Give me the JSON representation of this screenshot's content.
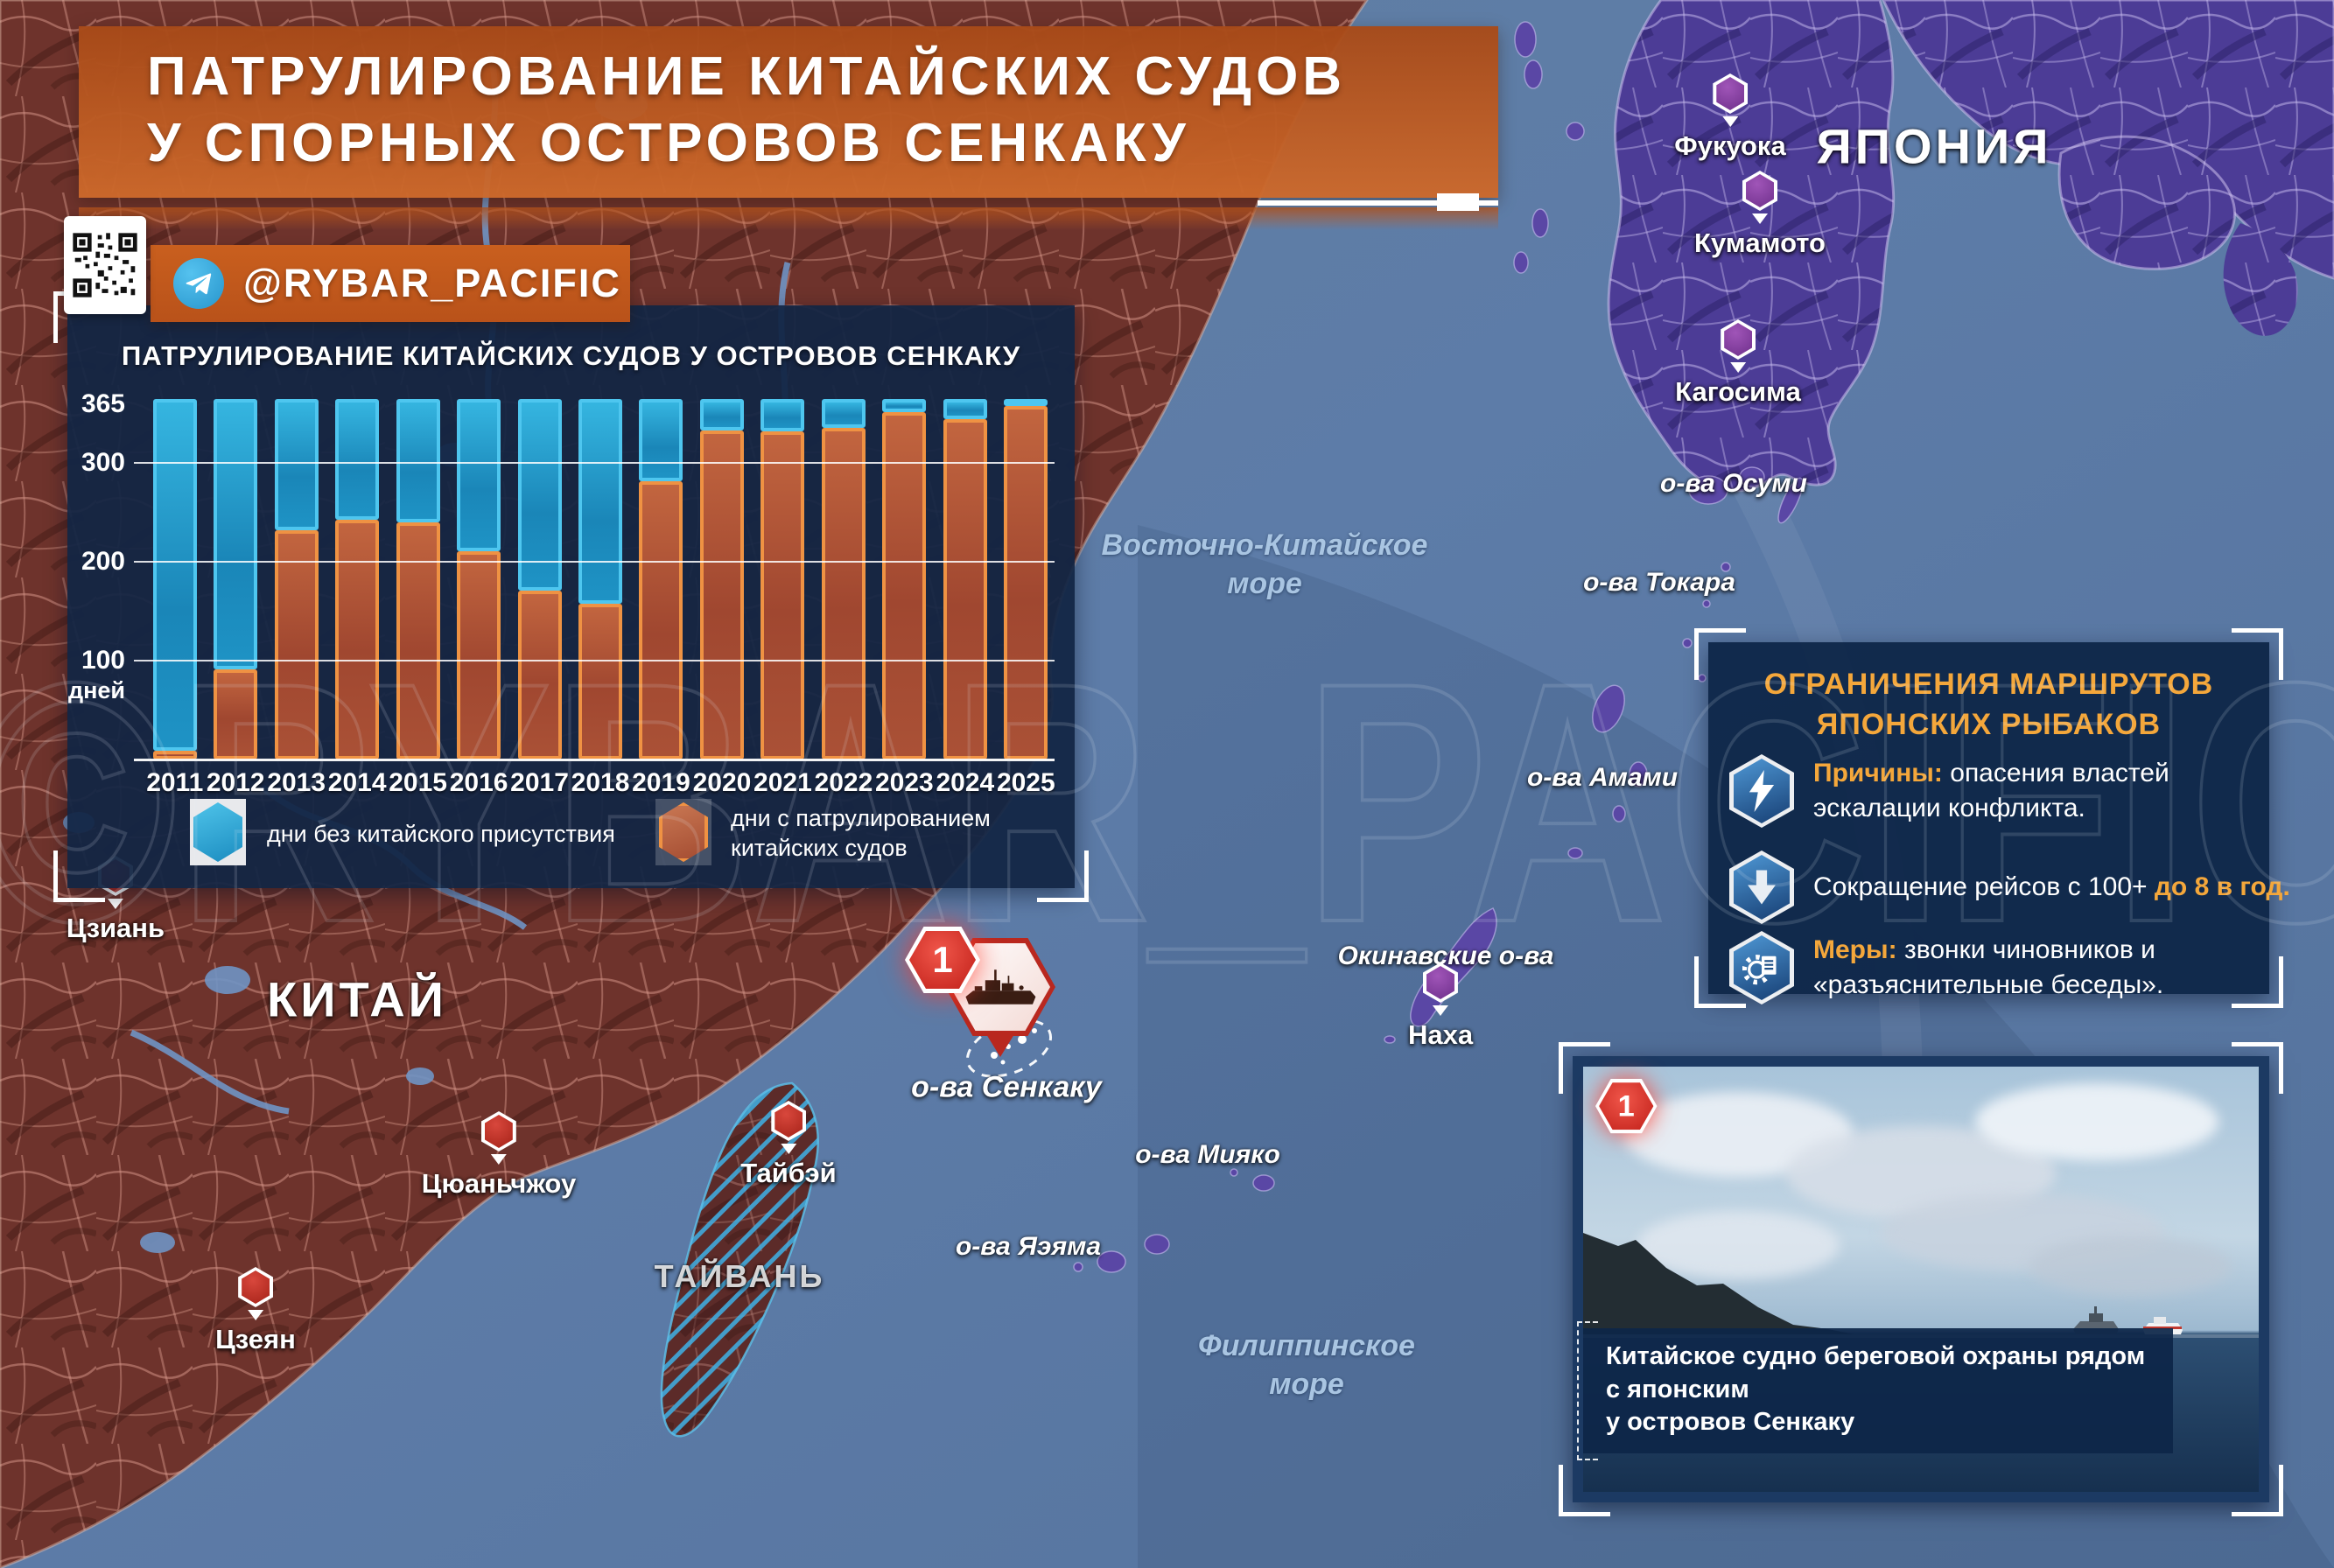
{
  "header": {
    "title_line1": "ПАТРУЛИРОВАНИЕ КИТАЙСКИХ СУДОВ",
    "title_line2": "У СПОРНЫХ ОСТРОВОВ СЕНКАКУ",
    "telegram_handle": "@RYBAR_PACIFIC"
  },
  "watermark_text": "©RYBAR_PACIFIC",
  "chart": {
    "title": "ПАТРУЛИРОВАНИЕ КИТАЙСКИХ СУДОВ У ОСТРОВОВ СЕНКАКУ",
    "y_axis_label": "дней",
    "legend_blue": "дни без китайского присутствия",
    "legend_orange_line1": "дни с патрулированием",
    "legend_orange_line2": "китайских судов"
  },
  "chart_data": {
    "type": "bar",
    "stacked": true,
    "title": "ПАТРУЛИРОВАНИЕ КИТАЙСКИХ СУДОВ У ОСТРОВОВ СЕНКАКУ",
    "ylabel": "дней",
    "ylim": [
      0,
      365
    ],
    "y_ticks": [
      {
        "v": 365,
        "line": false
      },
      {
        "v": 300,
        "line": true
      },
      {
        "v": 200,
        "line": true
      },
      {
        "v": 100,
        "line": true
      }
    ],
    "grid": true,
    "legend_position": "bottom",
    "categories": [
      2011,
      2012,
      2013,
      2014,
      2015,
      2016,
      2017,
      2018,
      2019,
      2020,
      2021,
      2022,
      2023,
      2024,
      2025
    ],
    "series": [
      {
        "name": "дни с патрулированием китайских судов",
        "color": "#b65a36",
        "values": [
          9,
          91,
          232,
          243,
          240,
          211,
          171,
          158,
          282,
          333,
          332,
          336,
          352,
          345,
          358
        ]
      },
      {
        "name": "дни без китайского присутствия",
        "color": "#29a7d7",
        "values": [
          356,
          274,
          133,
          122,
          125,
          154,
          194,
          207,
          83,
          32,
          33,
          29,
          13,
          20,
          7
        ]
      }
    ]
  },
  "map": {
    "labels": {
      "japan": "ЯПОНИЯ",
      "china": "КИТАЙ",
      "taiwan": "ТАЙВАНЬ",
      "east_china_sea_line1": "Восточно-Китайское",
      "east_china_sea_line2": "море",
      "philippine_sea_line1": "Филиппинское",
      "philippine_sea_line2": "море",
      "osumi": "о-ва Осуми",
      "tokara": "о-ва Токара",
      "amami": "о-ва Амами",
      "okinawa_islands": "Окинавские о-ва",
      "miyako": "о-ва Мияко",
      "yaeyama": "о-ва Яэяма",
      "senkaku": "о-ва Сенкаку"
    },
    "cities": {
      "fukuoka": "Фукуока",
      "kumamoto": "Кумамото",
      "kagoshima": "Кагосима",
      "naha": "Наха",
      "jian": "Цзиань",
      "quanzhou": "Цюаньчжоу",
      "jieyang": "Цзеян",
      "taipei": "Тайбэй"
    },
    "senkaku_badge": "1"
  },
  "info_panel": {
    "title_line1": "ОГРАНИЧЕНИЯ МАРШРУТОВ",
    "title_line2": "ЯПОНСКИХ РЫБАКОВ",
    "item1_lead": "Причины:",
    "item1_text": " опасения властей эскалации конфликта.",
    "item2_text": "Сокращение рейсов с 100+ ",
    "item2_accent": "до 8 в год.",
    "item3_lead": "Меры:",
    "item3_text": " звонки чиновников и «разъяснительные беседы»."
  },
  "photo_panel": {
    "badge": "1",
    "caption_line1": "Китайское судно береговой охраны рядом с японским",
    "caption_line2": "у островов Сенкаку"
  },
  "colors": {
    "accent_orange": "#f4a73b",
    "band_orange": "#c05b1e",
    "bar_blue": "#29a7d7",
    "bar_orange": "#b65a36",
    "marker_red": "#c8302a",
    "marker_purple": "#8a46a8",
    "sea": "#5d7da7",
    "panel_navy": "#122544"
  }
}
